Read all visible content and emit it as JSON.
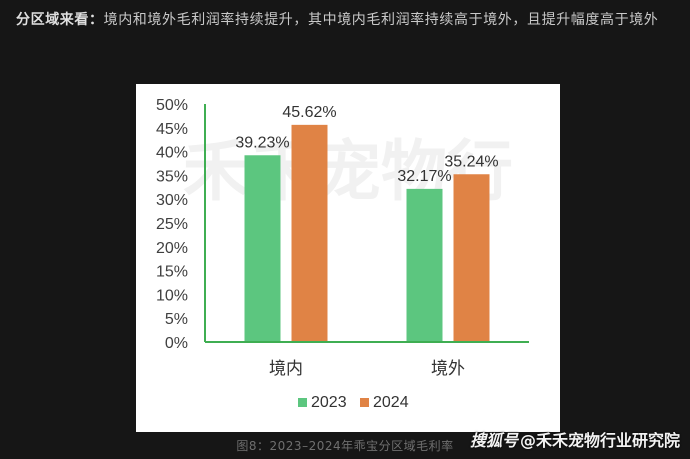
{
  "intro": {
    "lead": "分区域来看：",
    "text": "境内和境外毛利润率持续提升，其中境内毛利润率持续高于境外，且提升幅度高于境外"
  },
  "chart_data": {
    "type": "bar",
    "categories": [
      "境内",
      "境外"
    ],
    "series": [
      {
        "name": "2023",
        "values": [
          39.23,
          32.17
        ],
        "labels": [
          "39.23%",
          "32.17%"
        ],
        "color": "#5cc67f"
      },
      {
        "name": "2024",
        "values": [
          45.62,
          35.24
        ],
        "labels": [
          "45.62%",
          "35.24%"
        ],
        "color": "#e08345"
      }
    ],
    "ylim": [
      0,
      50
    ],
    "yticks": [
      0,
      5,
      10,
      15,
      20,
      25,
      30,
      35,
      40,
      45,
      50
    ],
    "ytick_labels": [
      "0%",
      "5%",
      "10%",
      "15%",
      "20%",
      "25%",
      "30%",
      "35%",
      "40%",
      "45%",
      "50%"
    ],
    "grid": false,
    "legend_position": "bottom",
    "watermark_text": "禾禾宠物行"
  },
  "caption": "图8：2023–2024年乖宝分区域毛利率",
  "watermark": {
    "logo": "搜狐号",
    "text": "@禾禾宠物行业研究院"
  }
}
